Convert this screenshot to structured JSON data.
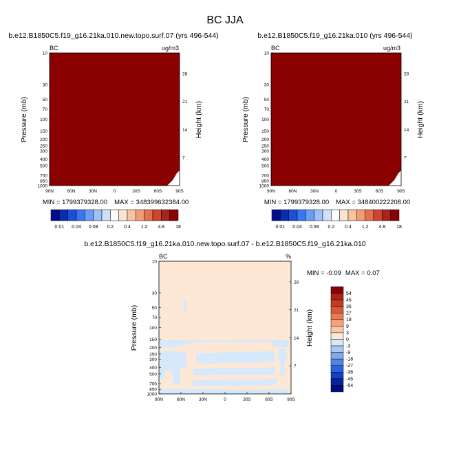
{
  "main_title": "BC JJA",
  "colors": {
    "dark_red": "#8b0000",
    "pos_small": "#fde8d6",
    "neg_small": "#d6e8fb"
  },
  "chart_data": [
    {
      "type": "heatmap",
      "id": "case",
      "title": "b.e12.B1850C5.f19_g16.21ka.010.new.topo.surf.07 (yrs 496-544)",
      "variable": "BC",
      "units": "ug/m3",
      "ylabel": "Pressure (mb)",
      "y2label": "Height (km)",
      "x_ticks": [
        "90N",
        "60N",
        "30N",
        "0",
        "30S",
        "60S",
        "90S"
      ],
      "y_ticks": [
        10,
        30,
        50,
        70,
        100,
        150,
        200,
        250,
        300,
        400,
        500,
        700,
        850,
        1000
      ],
      "y2_ticks": [
        28,
        21,
        14,
        7
      ],
      "ylim": [
        10,
        1000
      ],
      "stats": {
        "min_label": "MIN = ",
        "min": "1799379328.00",
        "max_label": "MAX = ",
        "max": "34839963238​4.00"
      },
      "fill": "all values above top contour level (18)"
    },
    {
      "type": "heatmap",
      "id": "control",
      "title": "b.e12.B1850C5.f19_g16.21ka.010 (yrs 496-544)",
      "variable": "BC",
      "units": "ug/m3",
      "ylabel": "Pressure (mb)",
      "y2label": "Height (km)",
      "x_ticks": [
        "90N",
        "60N",
        "30N",
        "0",
        "30S",
        "60S",
        "90S"
      ],
      "y_ticks": [
        10,
        30,
        50,
        70,
        100,
        150,
        200,
        250,
        300,
        400,
        500,
        700,
        850,
        1000
      ],
      "y2_ticks": [
        28,
        21,
        14,
        7
      ],
      "ylim": [
        10,
        1000
      ],
      "stats": {
        "min_label": "MIN = ",
        "min": "1799379328.00",
        "max_label": "MAX = ",
        "max": "348400222208.00"
      },
      "fill": "all values above top contour level (18)"
    },
    {
      "type": "heatmap",
      "id": "difference",
      "title": "b.e12.B1850C5.f19_g16.21ka.010.new.topo.surf.07 - b.e12.B1850C5.f19_g16.21ka.010",
      "variable": "BC",
      "units": "%",
      "ylabel": "Pressure (mb)",
      "y2label": "Height (km)",
      "x_ticks": [
        "90N",
        "60N",
        "30N",
        "0",
        "30S",
        "60S",
        "90S"
      ],
      "y_ticks": [
        10,
        30,
        50,
        70,
        100,
        150,
        200,
        250,
        300,
        400,
        500,
        700,
        850,
        1000
      ],
      "y2_ticks": [
        28,
        21,
        14,
        7
      ],
      "ylim": [
        10,
        1000
      ],
      "stats": {
        "min_label": "MIN = ",
        "min": "-0.09",
        "max_label": "MAX = ",
        "max": "0.07"
      },
      "fill": "values between -3 and 3 everywhere; positive (0 to 3) dominant, small negative (-3 to 0) patches in upper troposphere"
    }
  ],
  "colorbar_abs": {
    "labels": [
      "0.01",
      "0.04",
      "0.08",
      "0.2",
      "0.4",
      "1.2",
      "4.8",
      "18"
    ],
    "colors": [
      "#000e8c",
      "#0a2db0",
      "#1a4fd8",
      "#3a76f0",
      "#6a9cf4",
      "#9ec2f7",
      "#cfe0f9",
      "#fdfdfd",
      "#fde3cf",
      "#f9c2a0",
      "#f29c74",
      "#e4704e",
      "#cc4530",
      "#a8231a",
      "#8b0000"
    ]
  },
  "colorbar_diff": {
    "labels": [
      "54",
      "45",
      "36",
      "27",
      "18",
      "9",
      "3",
      "0",
      "-3",
      "-9",
      "-18",
      "-27",
      "-36",
      "-45",
      "-54"
    ],
    "colors": [
      "#8b0000",
      "#a8231a",
      "#c23b24",
      "#d9573a",
      "#ea7a56",
      "#f4a07c",
      "#f9c7a8",
      "#fde8d6",
      "#d6e8fb",
      "#aac8f4",
      "#7fa8ee",
      "#5284e6",
      "#2c62dc",
      "#1340c4",
      "#07249c",
      "#000e7a"
    ]
  }
}
